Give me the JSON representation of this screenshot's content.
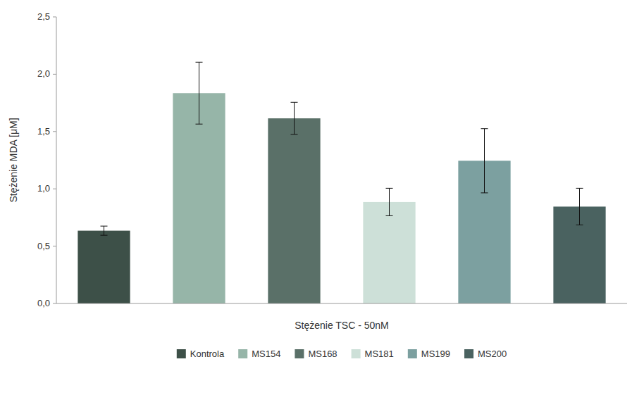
{
  "chart_data": {
    "type": "bar",
    "categories": [
      "Kontrola",
      "MS154",
      "MS168",
      "MS181",
      "MS199",
      "MS200"
    ],
    "values": [
      0.635,
      1.835,
      1.615,
      0.885,
      1.245,
      0.845
    ],
    "errors": [
      0.04,
      0.27,
      0.14,
      0.12,
      0.28,
      0.16
    ],
    "colors": [
      "#3d5048",
      "#96b5a8",
      "#5a7068",
      "#cde0d8",
      "#7ca0a0",
      "#4a6260"
    ],
    "xlabel": "Stężenie TSC - 50nM",
    "ylabel": "Stężenie MDA [μM]",
    "ylim": [
      0,
      2.5
    ],
    "yticks": [
      {
        "value": 0.0,
        "label": "0,0"
      },
      {
        "value": 0.5,
        "label": "0,5"
      },
      {
        "value": 1.0,
        "label": "1,0"
      },
      {
        "value": 1.5,
        "label": "1,5"
      },
      {
        "value": 2.0,
        "label": "2,0"
      },
      {
        "value": 2.5,
        "label": "2,5"
      }
    ],
    "grid": false,
    "legend": "bottom",
    "tick_labels": "y"
  }
}
